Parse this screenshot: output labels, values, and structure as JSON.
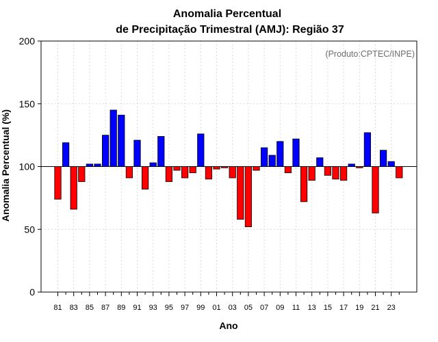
{
  "chart_data": {
    "type": "bar",
    "title_line1": "Anomalia Percentual",
    "title_line2": "de Precipitação Trimestral (AMJ): Região 37",
    "xlabel": "Ano",
    "ylabel": "Anomalia Percentual (%)",
    "credit": "(Produto:CPTEC/INPE)",
    "ylim": [
      0,
      200
    ],
    "yticks": [
      0,
      50,
      100,
      150,
      200
    ],
    "baseline": 100,
    "grid": true,
    "colors": {
      "above": "#0000ff",
      "below": "#ff0000",
      "edge": "#000000",
      "grid": "#d9d9d9"
    },
    "categories": [
      "81",
      "82",
      "83",
      "84",
      "85",
      "86",
      "87",
      "88",
      "89",
      "90",
      "91",
      "92",
      "93",
      "94",
      "95",
      "96",
      "97",
      "98",
      "99",
      "00",
      "01",
      "02",
      "03",
      "04",
      "05",
      "06",
      "07",
      "08",
      "09",
      "10",
      "11",
      "12",
      "13",
      "14",
      "15",
      "16",
      "17",
      "18",
      "19",
      "20",
      "21",
      "22",
      "23",
      "24"
    ],
    "xtick_labels": [
      "81",
      "83",
      "85",
      "87",
      "89",
      "91",
      "93",
      "95",
      "97",
      "99",
      "01",
      "03",
      "05",
      "07",
      "09",
      "11",
      "13",
      "15",
      "17",
      "19",
      "21",
      "23"
    ],
    "values": [
      74,
      119,
      66,
      88,
      102,
      102,
      125,
      145,
      141,
      91,
      121,
      82,
      103,
      124,
      88,
      97,
      91,
      95,
      126,
      90,
      98,
      99,
      91,
      58,
      52,
      97,
      115,
      109,
      120,
      95,
      122,
      72,
      89,
      107,
      93,
      90,
      89,
      102,
      99,
      127,
      63,
      113,
      104,
      91
    ]
  }
}
